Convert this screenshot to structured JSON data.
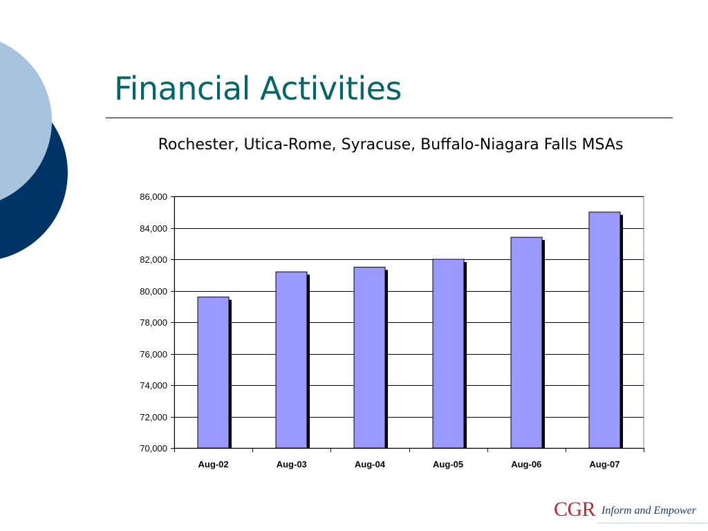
{
  "slide": {
    "title": "Financial Activities",
    "subtitle": "Rochester, Utica-Rome, Syracuse, Buffalo-Niagara Falls MSAs",
    "logo": "CGR",
    "tagline": "Inform and Empower"
  },
  "colors": {
    "title": "#006666",
    "bar_fill": "#9999FF",
    "bar_shadow": "#000000",
    "circle_light": "#A7C3DD",
    "circle_dark": "#003366",
    "logo": "#B22A37",
    "tagline": "#1F3A6B"
  },
  "chart_data": {
    "type": "bar",
    "categories": [
      "Aug-02",
      "Aug-03",
      "Aug-04",
      "Aug-05",
      "Aug-06",
      "Aug-07"
    ],
    "values": [
      79600,
      81200,
      81500,
      82000,
      83400,
      85000
    ],
    "ylim": [
      70000,
      86000
    ],
    "yticks": [
      "70,000",
      "72,000",
      "74,000",
      "76,000",
      "78,000",
      "80,000",
      "82,000",
      "84,000",
      "86,000"
    ],
    "grid": true,
    "legend": "none"
  }
}
